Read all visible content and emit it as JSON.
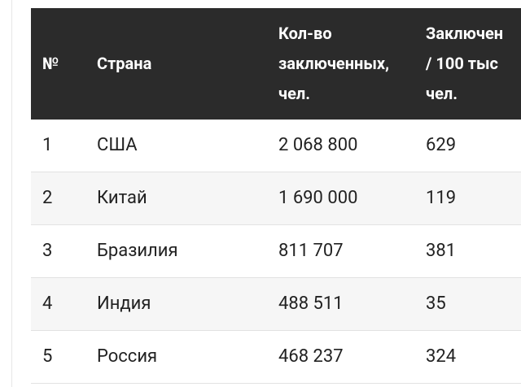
{
  "table": {
    "header": [
      [
        "№"
      ],
      [
        "Страна"
      ],
      [
        "Кол-во",
        "заключенных,",
        "чел."
      ],
      [
        "Заключен",
        "/ 100 тыс",
        "чел."
      ]
    ],
    "rows": [
      [
        "1",
        "США",
        "2 068 800",
        "629"
      ],
      [
        "2",
        "Китай",
        "1 690 000",
        "119"
      ],
      [
        "3",
        "Бразилия",
        "811 707",
        "381"
      ],
      [
        "4",
        "Индия",
        "488 511",
        "35"
      ],
      [
        "5",
        "Россия",
        "468 237",
        "324"
      ]
    ]
  }
}
